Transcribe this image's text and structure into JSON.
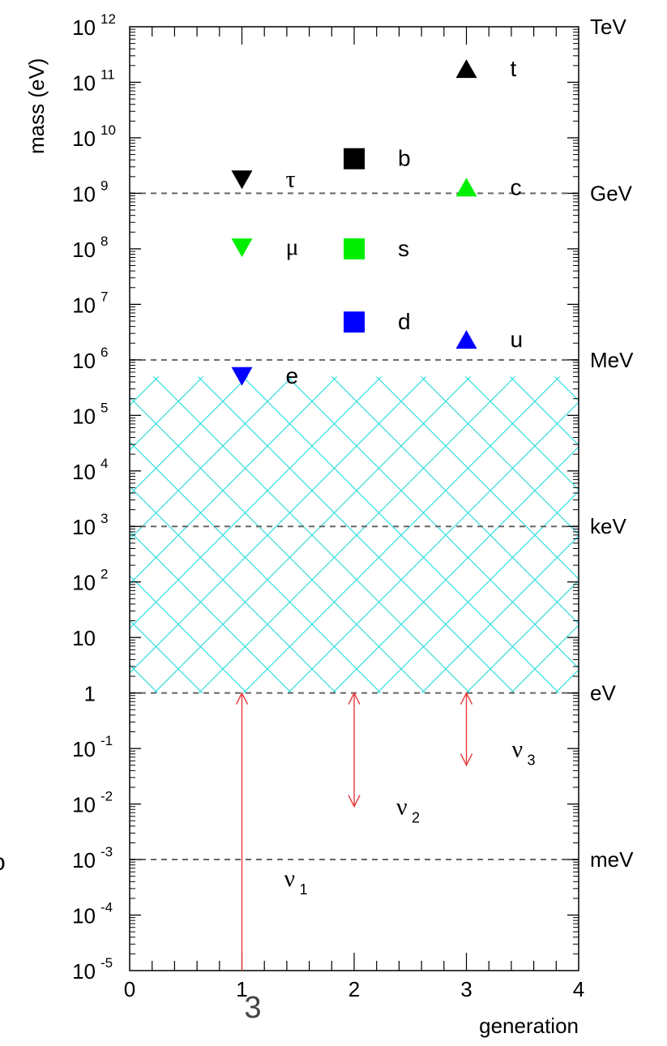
{
  "chart_data": {
    "type": "scatter",
    "xlabel": "generation",
    "ylabel": "mass (eV)",
    "xlim": [
      0,
      4
    ],
    "ylim": [
      1e-05,
      1000000000000.0
    ],
    "yscale": "log",
    "x_ticks": [
      "0",
      "1",
      "2",
      "3",
      "4"
    ],
    "y_ticks": [
      {
        "base": "10",
        "exp": "12",
        "value": 1000000000000.0
      },
      {
        "base": "10",
        "exp": "11",
        "value": 100000000000.0
      },
      {
        "base": "10",
        "exp": "10",
        "value": 10000000000.0
      },
      {
        "base": "10",
        "exp": "9",
        "value": 1000000000.0
      },
      {
        "base": "10",
        "exp": "8",
        "value": 100000000.0
      },
      {
        "base": "10",
        "exp": "7",
        "value": 10000000.0
      },
      {
        "base": "10",
        "exp": "6",
        "value": 1000000.0
      },
      {
        "base": "10",
        "exp": "5",
        "value": 100000.0
      },
      {
        "base": "10",
        "exp": "4",
        "value": 10000.0
      },
      {
        "base": "10",
        "exp": "3",
        "value": 1000.0
      },
      {
        "base": "10",
        "exp": "2",
        "value": 100.0
      },
      {
        "base": "10",
        "exp": "",
        "value": 10
      },
      {
        "base": "1",
        "exp": "",
        "value": 1
      },
      {
        "base": "10",
        "exp": "-1",
        "value": 0.1
      },
      {
        "base": "10",
        "exp": "-2",
        "value": 0.01
      },
      {
        "base": "10",
        "exp": "-3",
        "value": 0.001
      },
      {
        "base": "10",
        "exp": "-4",
        "value": 0.0001
      },
      {
        "base": "10",
        "exp": "-5",
        "value": 1e-05
      }
    ],
    "unit_lines": [
      {
        "label": "TeV",
        "value": 1000000000000.0,
        "dashed": false
      },
      {
        "label": "GeV",
        "value": 1000000000.0,
        "dashed": true
      },
      {
        "label": "MeV",
        "value": 1000000.0,
        "dashed": true
      },
      {
        "label": "keV",
        "value": 1000.0,
        "dashed": true
      },
      {
        "label": "eV",
        "value": 1,
        "dashed": true
      },
      {
        "label": "meV",
        "value": 0.001,
        "dashed": true
      }
    ],
    "points": [
      {
        "name": "t",
        "x": 3,
        "y": 173000000000.0,
        "marker": "triangle-up",
        "color": "#000000"
      },
      {
        "name": "b",
        "x": 2,
        "y": 4200000000.0,
        "marker": "square",
        "color": "#000000"
      },
      {
        "name": "τ",
        "x": 1,
        "y": 1780000000.0,
        "marker": "triangle-down",
        "color": "#000000"
      },
      {
        "name": "c",
        "x": 3,
        "y": 1270000000.0,
        "marker": "triangle-up",
        "color": "#00ee00"
      },
      {
        "name": "μ",
        "x": 1,
        "y": 106000000.0,
        "marker": "triangle-down",
        "color": "#00ee00"
      },
      {
        "name": "s",
        "x": 2,
        "y": 100000000.0,
        "marker": "square",
        "color": "#00ee00"
      },
      {
        "name": "d",
        "x": 2,
        "y": 4800000.0,
        "marker": "square",
        "color": "#0000ff"
      },
      {
        "name": "u",
        "x": 3,
        "y": 2300000.0,
        "marker": "triangle-up",
        "color": "#0000ff"
      },
      {
        "name": "e",
        "x": 1,
        "y": 511000.0,
        "marker": "triangle-down",
        "color": "#0000ff"
      }
    ],
    "neutrinos": [
      {
        "name": "ν",
        "sub": "1",
        "x": 1,
        "y_low": 1e-05,
        "y_high": 1
      },
      {
        "name": "ν",
        "sub": "2",
        "x": 2,
        "y_low": 0.009,
        "y_high": 1
      },
      {
        "name": "ν",
        "sub": "3",
        "x": 3,
        "y_low": 0.05,
        "y_high": 1
      }
    ],
    "excluded_region": {
      "y_low": 1,
      "y_high": 500000.0,
      "color": "#33dddd",
      "pattern": "cross-hatch"
    },
    "colors": {
      "dashed_line": "#666666",
      "neutrino_arrow": "#e8383a"
    }
  },
  "page_number": "3",
  "stray_mark": "o"
}
